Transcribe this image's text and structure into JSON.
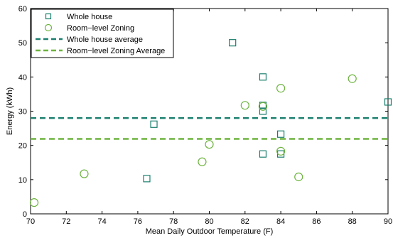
{
  "chart_data": {
    "type": "scatter",
    "xlabel": "Mean Daily Outdoor Temperature (F)",
    "ylabel": "Energy (kWh)",
    "xlim": [
      70,
      90
    ],
    "ylim": [
      0,
      60
    ],
    "xticks": [
      70,
      72,
      74,
      76,
      78,
      80,
      82,
      84,
      86,
      88,
      90
    ],
    "yticks": [
      0,
      10,
      20,
      30,
      40,
      50,
      60
    ],
    "grid": false,
    "legend_position": "top-left",
    "series": [
      {
        "name": "Whole house",
        "marker": "square",
        "color": "#1a7f6e",
        "points": [
          {
            "x": 76.5,
            "y": 10.3
          },
          {
            "x": 76.9,
            "y": 26.2
          },
          {
            "x": 81.3,
            "y": 50.0
          },
          {
            "x": 83.0,
            "y": 40.0
          },
          {
            "x": 83.0,
            "y": 31.7
          },
          {
            "x": 83.0,
            "y": 30.0
          },
          {
            "x": 83.0,
            "y": 17.5
          },
          {
            "x": 84.0,
            "y": 23.3
          },
          {
            "x": 84.0,
            "y": 17.5
          },
          {
            "x": 90.0,
            "y": 32.7
          }
        ]
      },
      {
        "name": "Room−level Zoning",
        "marker": "circle",
        "color": "#6db33f",
        "points": [
          {
            "x": 70.2,
            "y": 3.3
          },
          {
            "x": 73.0,
            "y": 11.7
          },
          {
            "x": 79.6,
            "y": 15.2
          },
          {
            "x": 80.0,
            "y": 20.3
          },
          {
            "x": 82.0,
            "y": 31.7
          },
          {
            "x": 83.0,
            "y": 31.4
          },
          {
            "x": 84.0,
            "y": 36.7
          },
          {
            "x": 84.0,
            "y": 18.3
          },
          {
            "x": 85.0,
            "y": 10.8
          },
          {
            "x": 88.0,
            "y": 39.5
          }
        ]
      }
    ],
    "reference_lines": [
      {
        "name": "Whole house average",
        "y": 28.0,
        "color": "#1a7f6e",
        "style": "dashed"
      },
      {
        "name": "Room−level Zoning Average",
        "y": 21.9,
        "color": "#6db33f",
        "style": "dashed"
      }
    ]
  }
}
